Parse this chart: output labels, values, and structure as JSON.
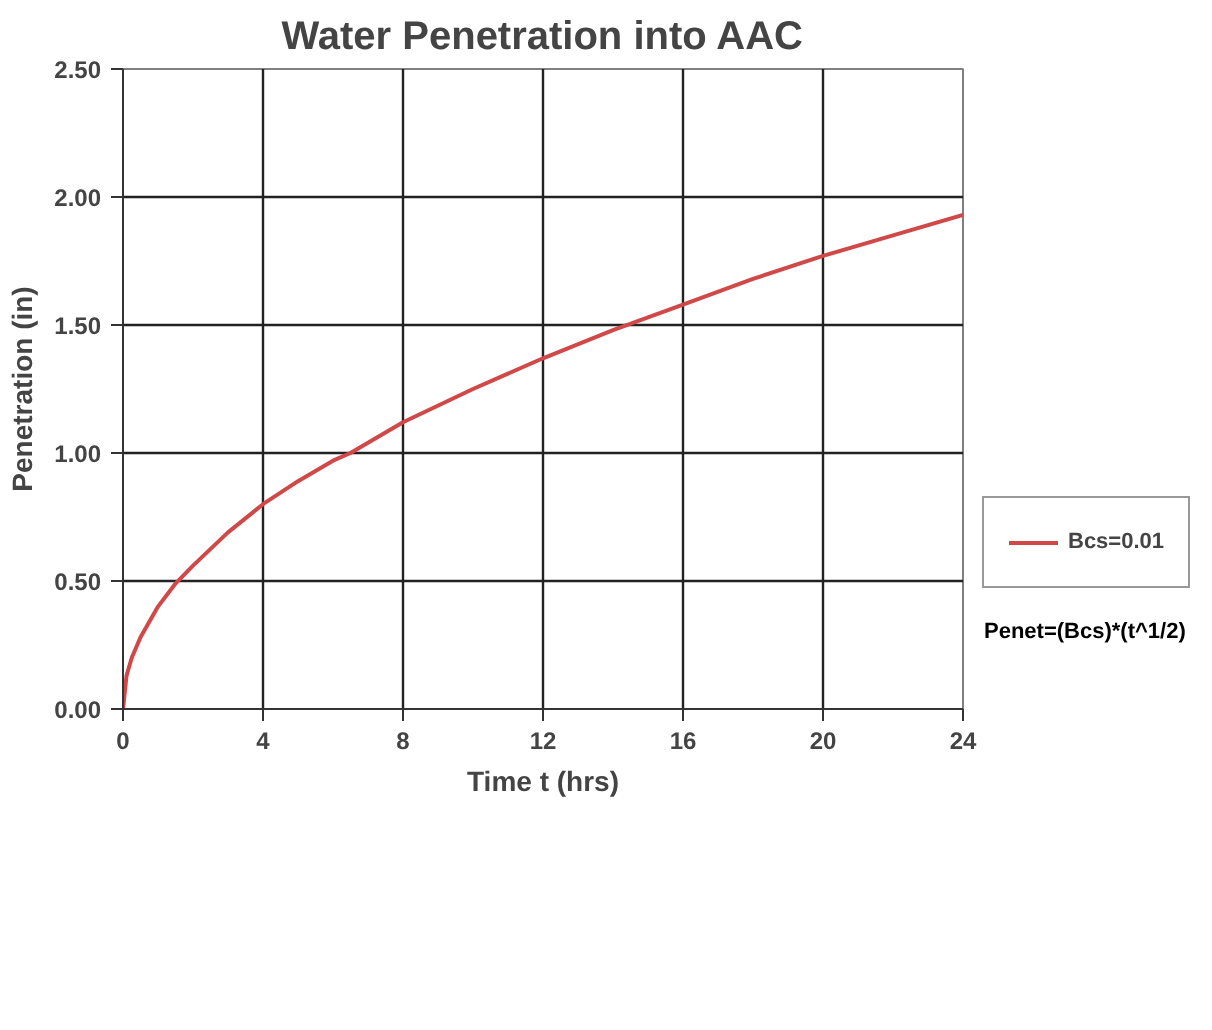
{
  "chart_data": {
    "type": "line",
    "title": "Water Penetration into AAC",
    "xlabel": "Time t (hrs)",
    "ylabel": "Penetration (in)",
    "x": [
      0,
      0.1,
      0.25,
      0.5,
      1,
      1.5,
      2,
      3,
      4,
      5,
      6,
      6.5,
      8,
      10,
      12,
      14,
      16,
      18,
      20,
      22,
      24
    ],
    "series": [
      {
        "name": "Bcs=0.01",
        "color": "#d04848",
        "values": [
          0,
          0.13,
          0.2,
          0.28,
          0.4,
          0.49,
          0.56,
          0.69,
          0.8,
          0.89,
          0.97,
          1.0,
          1.12,
          1.25,
          1.37,
          1.48,
          1.58,
          1.68,
          1.77,
          1.85,
          1.93
        ]
      }
    ],
    "xlim": [
      0,
      24
    ],
    "xticks": [
      0,
      4,
      8,
      12,
      16,
      20,
      24
    ],
    "ylim": [
      0,
      2.5
    ],
    "yticks": [
      {
        "value": 0,
        "label": "0.00"
      },
      {
        "value": 0.5,
        "label": "0.50"
      },
      {
        "value": 1,
        "label": "1.00"
      },
      {
        "value": 1.5,
        "label": "1.50"
      },
      {
        "value": 2,
        "label": "2.00"
      },
      {
        "value": 2.5,
        "label": "2.50"
      }
    ],
    "grid": true,
    "legend": "right",
    "marker": "none",
    "line_style": "solid",
    "annotations": [
      "Penet=(Bcs)*(t^1/2)"
    ]
  }
}
